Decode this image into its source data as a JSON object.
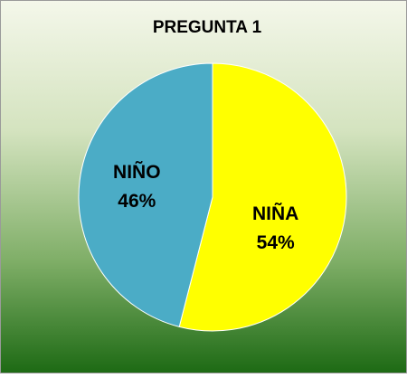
{
  "chart_data": {
    "type": "pie",
    "title": "PREGUNTA 1",
    "categories": [
      "NIÑA",
      "NIÑO"
    ],
    "values": [
      54,
      46
    ],
    "value_labels": [
      "54%",
      "46%"
    ],
    "colors": [
      "#ffff00",
      "#4bacc6"
    ]
  }
}
